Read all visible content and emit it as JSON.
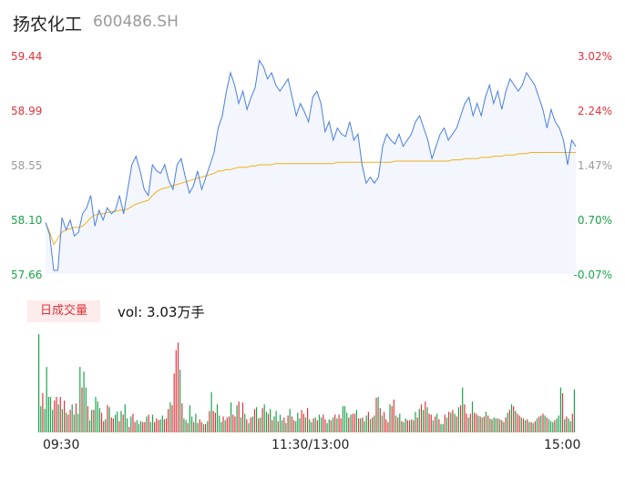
{
  "header": {
    "name": "扬农化工",
    "code": "600486.SH"
  },
  "colors": {
    "up": "#e0333b",
    "down": "#1aa34a",
    "neutral": "#9a9a9a",
    "price_line": "#4a7fe0",
    "avg_line": "#f2b01e",
    "fill": "#f3f6fc"
  },
  "volume": {
    "tag": "日成交量",
    "value_text": "vol: 3.03万手"
  },
  "chart_data": [
    {
      "type": "line",
      "title": "扬农化工 600486.SH",
      "prev_close": 57.7,
      "ylim": [
        57.66,
        59.44
      ],
      "left_ticks": [
        "59.44",
        "58.99",
        "58.55",
        "58.10",
        "57.66"
      ],
      "right_ticks": [
        "3.02%",
        "2.24%",
        "1.47%",
        "0.70%",
        "-0.07%"
      ],
      "x_tick_labels": [
        "09:30",
        "11:30/13:00",
        "15:00"
      ],
      "series": [
        {
          "name": "price",
          "values": [
            58.08,
            57.98,
            57.69,
            57.69,
            58.12,
            58.02,
            58.1,
            57.97,
            58.0,
            58.15,
            58.2,
            58.3,
            58.05,
            58.18,
            58.1,
            58.2,
            58.15,
            58.18,
            58.3,
            58.15,
            58.35,
            58.55,
            58.62,
            58.5,
            58.35,
            58.3,
            58.55,
            58.5,
            58.48,
            58.55,
            58.42,
            58.35,
            58.55,
            58.6,
            58.45,
            58.32,
            58.38,
            58.5,
            58.35,
            58.45,
            58.55,
            58.65,
            58.85,
            58.95,
            59.15,
            59.3,
            59.2,
            59.05,
            59.15,
            59.0,
            59.1,
            59.18,
            59.4,
            59.35,
            59.25,
            59.3,
            59.2,
            59.15,
            59.2,
            59.25,
            59.1,
            58.95,
            59.05,
            58.98,
            58.9,
            59.1,
            59.15,
            59.05,
            58.82,
            58.9,
            58.75,
            58.85,
            58.8,
            58.78,
            58.9,
            58.75,
            58.8,
            58.55,
            58.4,
            58.45,
            58.4,
            58.45,
            58.7,
            58.8,
            58.75,
            58.72,
            58.8,
            58.7,
            58.75,
            58.8,
            58.9,
            58.95,
            58.85,
            58.75,
            58.6,
            58.7,
            58.8,
            58.85,
            58.75,
            58.8,
            58.85,
            58.95,
            59.05,
            59.1,
            58.95,
            59.05,
            58.95,
            59.1,
            59.2,
            59.05,
            59.15,
            59.0,
            59.15,
            59.25,
            59.2,
            59.15,
            59.2,
            59.3,
            59.25,
            59.2,
            59.1,
            59.0,
            58.85,
            59.0,
            58.9,
            58.85,
            58.75,
            58.55,
            58.75,
            58.7
          ],
          "note": ""
        },
        {
          "name": "avg",
          "values": [
            58.08,
            58.0,
            57.9,
            57.95,
            58.0,
            58.02,
            58.03,
            58.04,
            58.04,
            58.05,
            58.08,
            58.12,
            58.14,
            58.15,
            58.15,
            58.16,
            58.17,
            58.17,
            58.18,
            58.18,
            58.19,
            58.21,
            58.23,
            58.24,
            58.25,
            58.26,
            58.3,
            58.33,
            58.35,
            58.36,
            58.37,
            58.38,
            58.39,
            58.4,
            58.41,
            58.42,
            58.43,
            58.44,
            58.45,
            58.46,
            58.47,
            58.48,
            58.5,
            58.5,
            58.51,
            58.51,
            58.52,
            58.53,
            58.53,
            58.53,
            58.54,
            58.54,
            58.55,
            58.55,
            58.55,
            58.55,
            58.56,
            58.56,
            58.56,
            58.56,
            58.56,
            58.56,
            58.56,
            58.56,
            58.56,
            58.56,
            58.56,
            58.56,
            58.56,
            58.56,
            58.56,
            58.57,
            58.57,
            58.57,
            58.57,
            58.57,
            58.57,
            58.57,
            58.57,
            58.57,
            58.57,
            58.57,
            58.57,
            58.57,
            58.57,
            58.58,
            58.58,
            58.58,
            58.58,
            58.58,
            58.58,
            58.58,
            58.58,
            58.58,
            58.58,
            58.58,
            58.58,
            58.58,
            58.58,
            58.59,
            58.59,
            58.59,
            58.6,
            58.6,
            58.6,
            58.6,
            58.61,
            58.61,
            58.61,
            58.62,
            58.62,
            58.62,
            58.63,
            58.63,
            58.63,
            58.64,
            58.64,
            58.64,
            58.65,
            58.65,
            58.65,
            58.65,
            58.65,
            58.65,
            58.65,
            58.65,
            58.65,
            58.65,
            58.65,
            58.65
          ]
        }
      ]
    },
    {
      "type": "bar",
      "title": "日成交量",
      "y_max_hands": 1100,
      "values": [
        1050,
        280,
        420,
        250,
        700,
        380,
        380,
        240,
        340,
        380,
        300,
        380,
        250,
        340,
        210,
        190,
        240,
        300,
        190,
        310,
        200,
        700,
        480,
        650,
        480,
        280,
        130,
        240,
        240,
        380,
        330,
        260,
        210,
        120,
        140,
        290,
        270,
        160,
        150,
        190,
        220,
        120,
        230,
        190,
        300,
        150,
        60,
        170,
        200,
        110,
        130,
        90,
        120,
        110,
        110,
        170,
        190,
        110,
        190,
        110,
        150,
        130,
        140,
        180,
        140,
        150,
        250,
        320,
        290,
        630,
        880,
        960,
        670,
        310,
        150,
        130,
        100,
        290,
        170,
        110,
        200,
        100,
        140,
        110,
        90,
        90,
        120,
        230,
        430,
        230,
        210,
        300,
        180,
        110,
        170,
        130,
        160,
        170,
        320,
        190,
        170,
        290,
        330,
        160,
        320,
        200,
        140,
        100,
        160,
        170,
        250,
        270,
        150,
        160,
        260,
        300,
        220,
        200,
        250,
        130,
        170,
        230,
        120,
        190,
        130,
        160,
        100,
        180,
        250,
        170,
        130,
        120,
        210,
        150,
        240,
        200,
        160,
        260,
        140,
        110,
        150,
        160,
        130,
        190,
        160,
        190,
        140,
        100,
        140,
        130,
        160,
        190,
        150,
        190,
        150,
        280,
        280,
        210,
        160,
        190,
        200,
        200,
        240,
        150,
        150,
        160,
        120,
        180,
        220,
        140,
        160,
        180,
        370,
        380,
        260,
        180,
        220,
        140,
        110,
        300,
        280,
        350,
        180,
        160,
        200,
        120,
        110,
        150,
        130,
        130,
        140,
        130,
        220,
        160,
        250,
        300,
        240,
        330,
        270,
        200,
        190,
        130,
        170,
        200,
        140,
        90,
        90,
        190,
        160,
        220,
        210,
        240,
        200,
        170,
        270,
        290,
        480,
        300,
        200,
        160,
        200,
        330,
        210,
        200,
        180,
        170,
        160,
        170,
        220,
        180,
        150,
        140,
        160,
        150,
        150,
        140,
        130,
        110,
        160,
        210,
        240,
        300,
        280,
        230,
        200,
        180,
        160,
        150,
        130,
        140,
        110,
        110,
        100,
        120,
        150,
        170,
        180,
        200,
        180,
        160,
        140,
        120,
        110,
        130,
        150,
        180,
        480,
        420,
        140,
        170,
        150,
        120,
        200,
        460
      ],
      "bar_colors": [
        "down",
        "down",
        "up",
        "down",
        "down",
        "down",
        "down",
        "down",
        "up",
        "up",
        "down",
        "up",
        "down",
        "up",
        "down",
        "up",
        "up",
        "down",
        "down",
        "up",
        "down",
        "down",
        "up",
        "down",
        "down",
        "up",
        "down",
        "down",
        "up",
        "down",
        "down",
        "down",
        "up",
        "up",
        "down",
        "up",
        "down",
        "up",
        "up",
        "down",
        "down",
        "up",
        "down",
        "up",
        "down",
        "down",
        "up",
        "down",
        "up",
        "up",
        "down",
        "down",
        "down",
        "up",
        "up",
        "down",
        "up",
        "down",
        "down",
        "up",
        "up",
        "up",
        "down",
        "down",
        "up",
        "up",
        "up",
        "down",
        "up",
        "up",
        "up",
        "up",
        "down",
        "up",
        "down",
        "down",
        "up",
        "down",
        "down",
        "up",
        "down",
        "down",
        "up",
        "up",
        "down",
        "up",
        "down",
        "up",
        "down",
        "up",
        "up",
        "down",
        "down",
        "down",
        "up",
        "down",
        "up",
        "up",
        "down",
        "up",
        "up",
        "down",
        "up",
        "down",
        "up",
        "down",
        "up",
        "down",
        "up",
        "down",
        "up",
        "down",
        "up",
        "down",
        "up",
        "down",
        "down",
        "up",
        "down",
        "up",
        "down",
        "down",
        "up",
        "down",
        "down",
        "up",
        "down",
        "up",
        "down",
        "up",
        "up",
        "down",
        "down",
        "down",
        "up",
        "up",
        "down",
        "up",
        "down",
        "down",
        "up",
        "down",
        "up",
        "down",
        "down",
        "up",
        "up",
        "down",
        "down",
        "up",
        "down",
        "up",
        "down",
        "up",
        "up",
        "down",
        "down",
        "down",
        "up",
        "down",
        "up",
        "up",
        "down",
        "up",
        "down",
        "up",
        "down",
        "down",
        "up",
        "down",
        "up",
        "down",
        "up",
        "down",
        "up",
        "down",
        "up",
        "up",
        "up",
        "down",
        "up",
        "up",
        "down",
        "up",
        "down",
        "up",
        "down",
        "down",
        "up",
        "up",
        "down",
        "up",
        "down",
        "up",
        "down",
        "up",
        "down",
        "up",
        "down",
        "up",
        "up",
        "down",
        "up",
        "down",
        "up",
        "down",
        "down",
        "up",
        "down",
        "up",
        "down",
        "up",
        "down",
        "up",
        "down",
        "up",
        "down",
        "up",
        "up",
        "down",
        "up",
        "down",
        "up",
        "up",
        "down",
        "up",
        "down",
        "up",
        "down",
        "up",
        "down",
        "up",
        "down",
        "down",
        "up",
        "down",
        "up",
        "down",
        "up",
        "down",
        "up",
        "down",
        "up",
        "down",
        "up",
        "up",
        "down",
        "up",
        "down",
        "up",
        "down",
        "up",
        "down",
        "up",
        "down",
        "up",
        "down",
        "up",
        "down",
        "up",
        "down",
        "down",
        "down",
        "up",
        "down",
        "down",
        "down",
        "up",
        "down",
        "up",
        "down",
        "down",
        "up",
        "down",
        "down"
      ]
    }
  ]
}
